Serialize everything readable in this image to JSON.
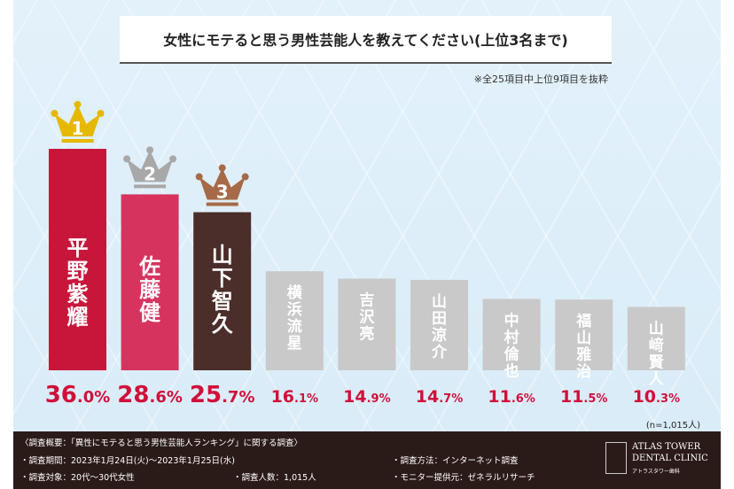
{
  "title": "女性にモテると思う男性芸能人を教えてください(上位3名まで)",
  "note": "※全25項目中上位9項目を抜粋",
  "sample_size": "(n=1,015人)",
  "chart_data": {
    "type": "bar",
    "categories": [
      "平野紫耀",
      "佐藤健",
      "山下智久",
      "横浜流星",
      "吉沢亮",
      "山田涼介",
      "中村倫也",
      "福山雅治",
      "山﨑賢人"
    ],
    "values": [
      36.0,
      28.6,
      25.7,
      16.1,
      14.9,
      14.7,
      11.6,
      11.5,
      10.3
    ],
    "value_labels": [
      "36.0%",
      "28.6%",
      "25.7%",
      "16.1%",
      "14.9%",
      "14.7%",
      "11.6%",
      "11.5%",
      "10.3%"
    ],
    "ranks": [
      "1",
      "2",
      "3"
    ],
    "colors": [
      "#c8163b",
      "#d6335f",
      "#4b2d29",
      "#c9c9c9",
      "#c9c9c9",
      "#c9c9c9",
      "#c9c9c9",
      "#c9c9c9",
      "#c9c9c9"
    ],
    "crown_colors": [
      "#e6b800",
      "#a8a8a8",
      "#a66a48"
    ],
    "label_color": "#d0103a",
    "ylim": [
      0,
      40
    ]
  },
  "footer": {
    "summary": "〈調査概要：「異性にモテると思う男性芸能人ランキング」に関する調査〉",
    "period": "・調査期間：2023年1月24日(火)〜2023年1月25日(水)",
    "method": "・調査方法：インターネット調査",
    "target": "・調査対象：20代〜30代女性",
    "count": "・調査人数：1,015人",
    "provider": "・モニター提供元：ゼネラルリサーチ"
  },
  "logo": {
    "line1": "ATLAS TOWER",
    "line2": "DENTAL CLINIC",
    "line3": "アトラスタワー歯科"
  }
}
